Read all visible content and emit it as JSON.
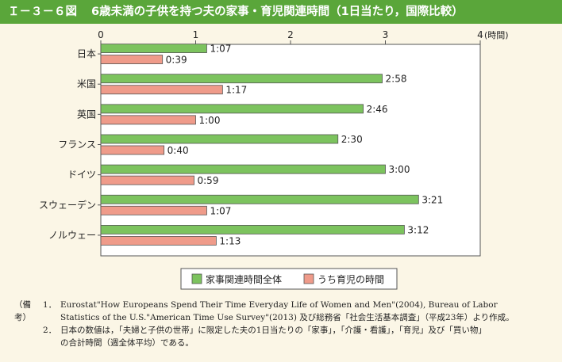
{
  "figure": {
    "number": "Ｉ－３－６図",
    "title": "6歳未満の子供を持つ夫の家事・育児関連時間（1日当たり，国際比較）"
  },
  "chart_data": {
    "type": "bar",
    "orientation": "horizontal",
    "x_unit_label": "(時間)",
    "x_ticks": [
      "0",
      "1",
      "2",
      "3",
      "4"
    ],
    "xlim": [
      0,
      4
    ],
    "grid": false,
    "legend_position": "bottom-center",
    "categories": [
      "日本",
      "米国",
      "英国",
      "フランス",
      "ドイツ",
      "スウェーデン",
      "ノルウェー"
    ],
    "series": [
      {
        "name": "家事関連時間全体",
        "color": "#7cc35e",
        "values": [
          1.1167,
          2.9667,
          2.7667,
          2.5,
          3.0,
          3.35,
          3.2
        ],
        "labels": [
          "1:07",
          "2:58",
          "2:46",
          "2:30",
          "3:00",
          "3:21",
          "3:12"
        ]
      },
      {
        "name": "うち育児の時間",
        "color": "#ef9b8a",
        "values": [
          0.65,
          1.2833,
          1.0,
          0.6667,
          0.9833,
          1.1167,
          1.2167
        ],
        "labels": [
          "0:39",
          "1:17",
          "1:00",
          "0:40",
          "0:59",
          "1:07",
          "1:13"
        ]
      }
    ]
  },
  "notes": {
    "label": "（備考）",
    "items": [
      {
        "num": "1．",
        "lines": [
          "Eurostat\"How Europeans Spend Their Time Everyday Life of Women and Men\"(2004), Bureau of Labor",
          "Statistics of the U.S.\"American Time Use Survey\"(2013) 及び総務省「社会生活基本調査」（平成23年）より作成。"
        ]
      },
      {
        "num": "2．",
        "lines": [
          "日本の数値は，「夫婦と子供の世帯」に限定した夫の1日当たりの「家事」，「介護・看護」，「育児」及び「買い物」",
          "の合計時間（週全体平均）である。"
        ]
      }
    ]
  }
}
